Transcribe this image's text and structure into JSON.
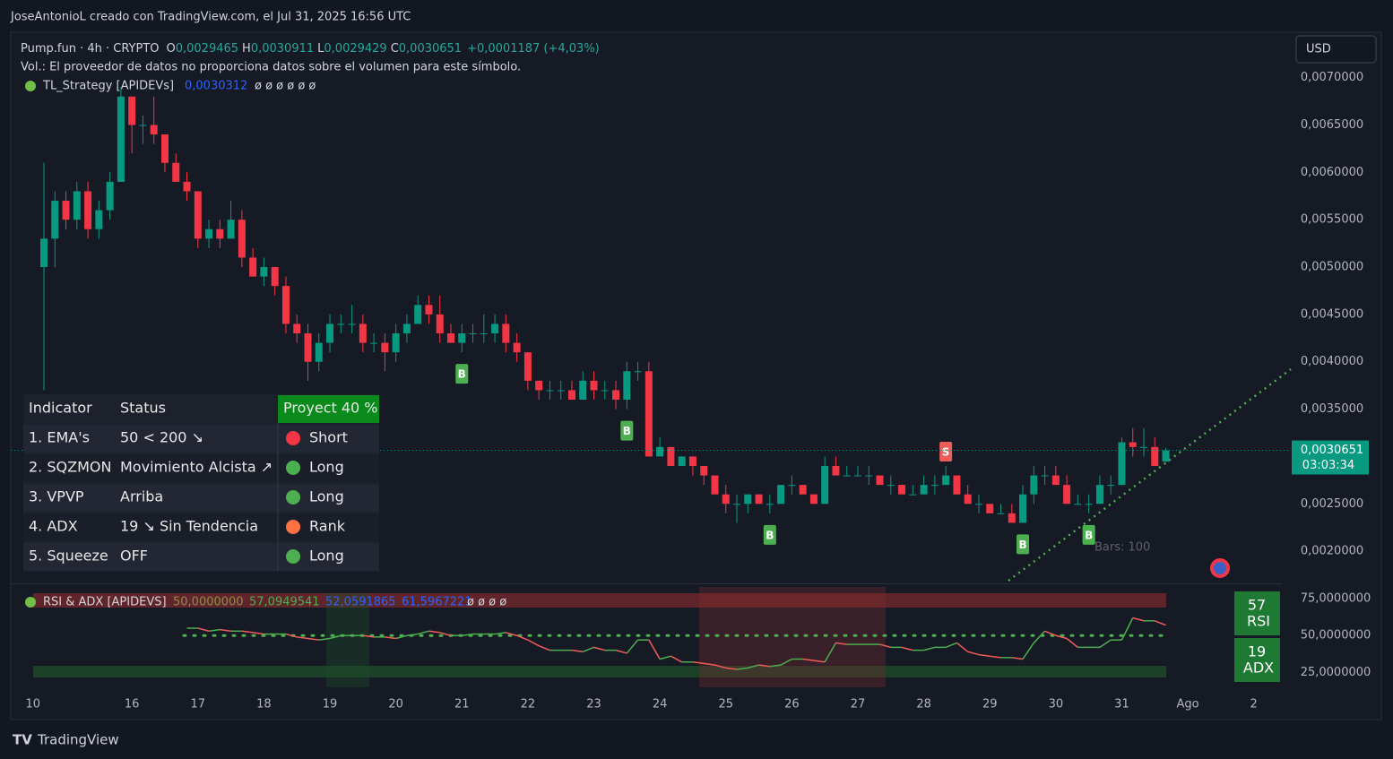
{
  "header": {
    "credit": "JoseAntonioL creado con TradingView.com, el Jul 31, 2025 16:56 UTC",
    "brand": "TradingView",
    "currency": "USD",
    "bars_note": "Bars: 100"
  },
  "legend": {
    "symbol": "Pump.fun · 4h · CRYPTO",
    "ohlc": [
      {
        "key": "O",
        "value": "0,0029465"
      },
      {
        "key": "H",
        "value": "0,0030911"
      },
      {
        "key": "L",
        "value": "0,0029429"
      },
      {
        "key": "C",
        "value": "0,0030651"
      }
    ],
    "change": "+0,0001187 (+4,03%)",
    "volume_note": "Vol.: El proveedor de datos no proporciona datos sobre el volumen para este símbolo.",
    "strategy": "TL_Strategy [APIDEVs]",
    "strategy_value": "0,0030312",
    "strategy_empty": "ø ø ø ø ø ø"
  },
  "indicator_table": {
    "header": [
      "Indicator",
      "Status",
      "Proyect 40 %"
    ],
    "rows": [
      {
        "indicator": "1. EMA's",
        "status": "50 < 200 ↘",
        "signal": "Short",
        "color": "#f23645"
      },
      {
        "indicator": "2. SQZMON",
        "status": "Movimiento Alcista ↗",
        "signal": "Long",
        "color": "#4caf50"
      },
      {
        "indicator": "3. VPVP",
        "status": "Arriba",
        "signal": "Long",
        "color": "#4caf50"
      },
      {
        "indicator": "4. ADX",
        "status": "19 ↘ Sin Tendencia",
        "signal": "Rank",
        "color": "#ff7043"
      },
      {
        "indicator": "5. Squeeze",
        "status": "OFF",
        "signal": "Long",
        "color": "#4caf50"
      }
    ]
  },
  "chart_data": [
    {
      "type": "candlestick",
      "up_color": "#089981",
      "down_color": "#f23645",
      "open": [
        0.005,
        0.0053,
        0.0057,
        0.0055,
        0.0058,
        0.0054,
        0.0056,
        0.0059,
        0.0068,
        0.0065,
        0.0065,
        0.0064,
        0.0061,
        0.0059,
        0.0058,
        0.0053,
        0.0054,
        0.0053,
        0.0055,
        0.0051,
        0.0049,
        0.005,
        0.0048,
        0.0044,
        0.0043,
        0.004,
        0.0042,
        0.0044,
        0.0044,
        0.0044,
        0.0042,
        0.0042,
        0.0041,
        0.0043,
        0.0044,
        0.0046,
        0.0045,
        0.0043,
        0.0042,
        0.0043,
        0.0043,
        0.0043,
        0.0044,
        0.0042,
        0.0041,
        0.0038,
        0.0037,
        0.0037,
        0.0037,
        0.0036,
        0.0038,
        0.0037,
        0.0037,
        0.0036,
        0.0039,
        0.0039,
        0.003,
        0.0031,
        0.0029,
        0.003,
        0.0029,
        0.0028,
        0.0026,
        0.0025,
        0.0025,
        0.0026,
        0.0025,
        0.0025,
        0.0027,
        0.0027,
        0.0026,
        0.0025,
        0.0029,
        0.0028,
        0.0028,
        0.0028,
        0.0028,
        0.0027,
        0.0027,
        0.0026,
        0.0026,
        0.0027,
        0.0027,
        0.0028,
        0.0026,
        0.0025,
        0.0025,
        0.0024,
        0.0024,
        0.0023,
        0.0026,
        0.0028,
        0.0028,
        0.0027,
        0.0025,
        0.0025,
        0.0025,
        0.0027,
        0.0027,
        0.00315,
        0.0031,
        0.0031,
        0.0029465
      ],
      "high": [
        0.0061,
        0.0058,
        0.0058,
        0.0059,
        0.0059,
        0.0057,
        0.006,
        0.0069,
        0.0068,
        0.0066,
        0.0068,
        0.0064,
        0.0062,
        0.006,
        0.0058,
        0.0055,
        0.0055,
        0.0057,
        0.0056,
        0.0052,
        0.0051,
        0.005,
        0.0049,
        0.0045,
        0.0044,
        0.0043,
        0.0045,
        0.0045,
        0.0046,
        0.0045,
        0.0043,
        0.0043,
        0.0044,
        0.0045,
        0.0047,
        0.0047,
        0.0047,
        0.0044,
        0.0044,
        0.0044,
        0.0045,
        0.0045,
        0.0045,
        0.0043,
        0.0041,
        0.0038,
        0.0038,
        0.0038,
        0.0038,
        0.0039,
        0.0039,
        0.0038,
        0.0038,
        0.004,
        0.004,
        0.004,
        0.0032,
        0.0031,
        0.003,
        0.003,
        0.0029,
        0.0028,
        0.0027,
        0.0026,
        0.0026,
        0.0026,
        0.0026,
        0.0027,
        0.0028,
        0.0027,
        0.0026,
        0.003,
        0.003,
        0.0029,
        0.0029,
        0.0029,
        0.0028,
        0.0028,
        0.0027,
        0.0027,
        0.0028,
        0.0028,
        0.0029,
        0.0028,
        0.0027,
        0.0026,
        0.0025,
        0.0025,
        0.0025,
        0.0027,
        0.0029,
        0.0029,
        0.0029,
        0.0028,
        0.0026,
        0.0026,
        0.0028,
        0.0028,
        0.0032,
        0.0033,
        0.0033,
        0.0032,
        0.0030911
      ],
      "low": [
        0.0037,
        0.005,
        0.0054,
        0.0054,
        0.0053,
        0.0053,
        0.0055,
        0.0059,
        0.0062,
        0.0063,
        0.0063,
        0.006,
        0.0059,
        0.0057,
        0.0052,
        0.0052,
        0.0052,
        0.0053,
        0.005,
        0.0049,
        0.0048,
        0.0047,
        0.0043,
        0.0042,
        0.0038,
        0.0039,
        0.0041,
        0.0043,
        0.0043,
        0.0041,
        0.0041,
        0.0039,
        0.004,
        0.0042,
        0.0044,
        0.0044,
        0.0042,
        0.0042,
        0.0041,
        0.0042,
        0.0042,
        0.0042,
        0.0041,
        0.004,
        0.0037,
        0.0036,
        0.0036,
        0.0036,
        0.0036,
        0.0036,
        0.0036,
        0.0036,
        0.0035,
        0.0035,
        0.0038,
        0.003,
        0.003,
        0.0029,
        0.0029,
        0.0028,
        0.0027,
        0.0026,
        0.0024,
        0.0023,
        0.0024,
        0.0025,
        0.0024,
        0.0025,
        0.0026,
        0.0026,
        0.0025,
        0.0025,
        0.0028,
        0.0028,
        0.0028,
        0.0027,
        0.0027,
        0.0026,
        0.0026,
        0.0026,
        0.0026,
        0.0026,
        0.0027,
        0.0026,
        0.0025,
        0.0024,
        0.0024,
        0.0024,
        0.0023,
        0.0023,
        0.0025,
        0.0027,
        0.0027,
        0.0025,
        0.0025,
        0.0024,
        0.0025,
        0.0026,
        0.0027,
        0.003,
        0.003,
        0.0029,
        0.0029429
      ],
      "close": [
        0.0053,
        0.0057,
        0.0055,
        0.0058,
        0.0054,
        0.0056,
        0.0059,
        0.0068,
        0.0065,
        0.0065,
        0.0064,
        0.0061,
        0.0059,
        0.0058,
        0.0053,
        0.0054,
        0.0053,
        0.0055,
        0.0051,
        0.0049,
        0.005,
        0.0048,
        0.0044,
        0.0043,
        0.004,
        0.0042,
        0.0044,
        0.0044,
        0.0044,
        0.0042,
        0.0042,
        0.0041,
        0.0043,
        0.0044,
        0.0046,
        0.0045,
        0.0043,
        0.0042,
        0.0043,
        0.0043,
        0.0043,
        0.0044,
        0.0042,
        0.0041,
        0.0038,
        0.0037,
        0.0037,
        0.0037,
        0.0036,
        0.0038,
        0.0037,
        0.0037,
        0.0036,
        0.0039,
        0.0039,
        0.003,
        0.0031,
        0.0029,
        0.003,
        0.0029,
        0.0028,
        0.0026,
        0.0025,
        0.0025,
        0.0026,
        0.0025,
        0.0025,
        0.0027,
        0.0027,
        0.0026,
        0.0025,
        0.0029,
        0.0028,
        0.0028,
        0.0028,
        0.0028,
        0.0027,
        0.0027,
        0.0026,
        0.0026,
        0.0027,
        0.0027,
        0.0028,
        0.0026,
        0.0025,
        0.0025,
        0.0024,
        0.0024,
        0.0023,
        0.0026,
        0.0028,
        0.0028,
        0.0027,
        0.0025,
        0.0025,
        0.0025,
        0.0027,
        0.0027,
        0.00315,
        0.0031,
        0.0031,
        0.0029,
        0.0030651
      ],
      "signals": [
        {
          "label": "B",
          "candle": 38
        },
        {
          "label": "B",
          "candle": 53
        },
        {
          "label": "B",
          "candle": 66
        },
        {
          "label": "S",
          "candle": 82
        },
        {
          "label": "B",
          "candle": 89
        },
        {
          "label": "B",
          "candle": 95
        }
      ],
      "xticks": [
        {
          "value": -1,
          "label": "10"
        },
        {
          "value": 8,
          "label": "16"
        },
        {
          "value": 14,
          "label": "17"
        },
        {
          "value": 20,
          "label": "18"
        },
        {
          "value": 26,
          "label": "19"
        },
        {
          "value": 32,
          "label": "20"
        },
        {
          "value": 38,
          "label": "21"
        },
        {
          "value": 44,
          "label": "22"
        },
        {
          "value": 50,
          "label": "23"
        },
        {
          "value": 56,
          "label": "24"
        },
        {
          "value": 62,
          "label": "25"
        },
        {
          "value": 68,
          "label": "26"
        },
        {
          "value": 74,
          "label": "27"
        },
        {
          "value": 80,
          "label": "28"
        },
        {
          "value": 86,
          "label": "29"
        },
        {
          "value": 92,
          "label": "30"
        },
        {
          "value": 98,
          "label": "31"
        },
        {
          "value": 104,
          "label": "Ago"
        },
        {
          "value": 110,
          "label": "2"
        }
      ],
      "ylim": [
        0.00167,
        0.00746
      ],
      "yticks": [
        {
          "value": 0.007,
          "label": "0,0070000"
        },
        {
          "value": 0.0065,
          "label": "0,0065000"
        },
        {
          "value": 0.006,
          "label": "0,0060000"
        },
        {
          "value": 0.0055,
          "label": "0,0055000"
        },
        {
          "value": 0.005,
          "label": "0,0050000"
        },
        {
          "value": 0.0045,
          "label": "0,0045000"
        },
        {
          "value": 0.004,
          "label": "0,0040000"
        },
        {
          "value": 0.0035,
          "label": "0,0035000"
        },
        {
          "value": 0.0025,
          "label": "0,0025000"
        },
        {
          "value": 0.002,
          "label": "0,0020000"
        }
      ],
      "last_price": {
        "value": 0.0030651,
        "label": "0,0030651",
        "countdown": "03:03:34"
      }
    },
    {
      "type": "line",
      "title": "RSI & ADX [APIDEVS]",
      "legend_values": [
        {
          "label": "50,0000000",
          "color": "#8d8d4a"
        },
        {
          "label": "57,0949541",
          "color": "#4caf50"
        },
        {
          "label": "52,0591865",
          "color": "#2962ff"
        },
        {
          "label": "61,5967221",
          "color": "#2962ff"
        }
      ],
      "legend_empty": "ø ø ø ø",
      "up_color": "#4caf50",
      "down_color": "#f05c5c",
      "series": [
        {
          "name": "RSI",
          "values": [
            null,
            null,
            null,
            null,
            null,
            null,
            null,
            null,
            null,
            null,
            null,
            null,
            null,
            55,
            55,
            53,
            54,
            53,
            53,
            52,
            51,
            51,
            51,
            49,
            48,
            47,
            48,
            50,
            50,
            50,
            49,
            49,
            48,
            50,
            51,
            53,
            52,
            50,
            50,
            51,
            51,
            51,
            52,
            50,
            47,
            43,
            40,
            40,
            40,
            39,
            42,
            40,
            40,
            38,
            47,
            47,
            34,
            36,
            32,
            32,
            31,
            30,
            28,
            27,
            28,
            30,
            29,
            30,
            34,
            34,
            33,
            32,
            45,
            44,
            44,
            44,
            44,
            42,
            42,
            40,
            40,
            42,
            42,
            45,
            39,
            37,
            36,
            35,
            35,
            34,
            45,
            53,
            50,
            48,
            42,
            42,
            42,
            47,
            47,
            62,
            60,
            60,
            57
          ]
        }
      ],
      "ylim": [
        13,
        83
      ],
      "yticks": [
        {
          "value": 75,
          "label": "75,0000000"
        },
        {
          "value": 50,
          "label": "50,0000000"
        },
        {
          "value": 25,
          "label": "25,0000000"
        }
      ],
      "badges": [
        {
          "value": "57",
          "label": "RSI"
        },
        {
          "value": "19",
          "label": "ADX"
        }
      ]
    }
  ]
}
